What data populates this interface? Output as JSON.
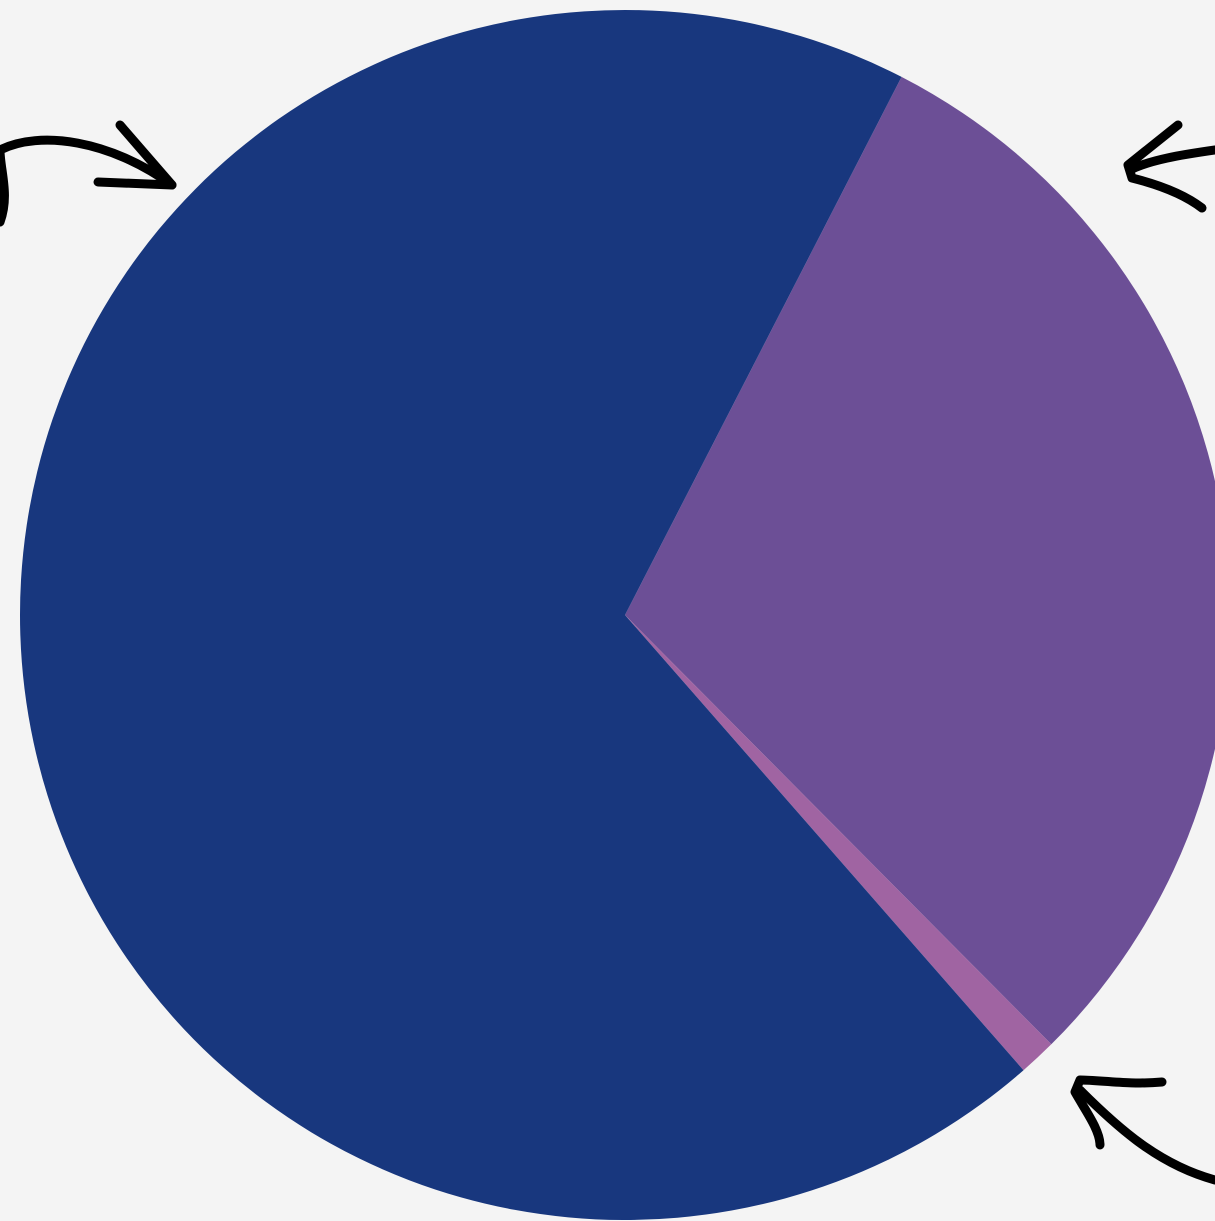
{
  "chart_data": {
    "type": "pie",
    "values": [
      30,
      1,
      69
    ],
    "colors": [
      "#6c4f96",
      "#a064a2",
      "#18377e"
    ]
  }
}
